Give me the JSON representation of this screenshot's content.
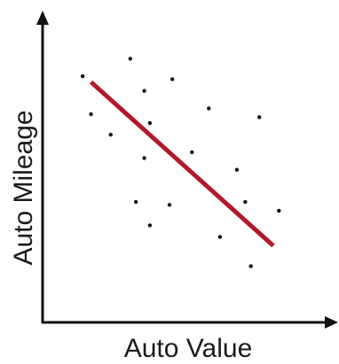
{
  "chart_data": {
    "type": "scatter",
    "xlabel": "Auto Value",
    "ylabel": "Auto Mileage",
    "title": "",
    "xlim": [
      0,
      100
    ],
    "ylim": [
      0,
      100
    ],
    "grid": false,
    "series": [
      {
        "values": [
          {
            "x": 13,
            "y": 83
          },
          {
            "x": 30,
            "y": 89
          },
          {
            "x": 35,
            "y": 78
          },
          {
            "x": 45,
            "y": 82
          },
          {
            "x": 16,
            "y": 70
          },
          {
            "x": 23,
            "y": 63
          },
          {
            "x": 37,
            "y": 67
          },
          {
            "x": 58,
            "y": 72
          },
          {
            "x": 76,
            "y": 69
          },
          {
            "x": 35,
            "y": 55
          },
          {
            "x": 52,
            "y": 57
          },
          {
            "x": 68,
            "y": 51
          },
          {
            "x": 32,
            "y": 40
          },
          {
            "x": 44,
            "y": 39
          },
          {
            "x": 37,
            "y": 32
          },
          {
            "x": 71,
            "y": 40
          },
          {
            "x": 83,
            "y": 37
          },
          {
            "x": 62,
            "y": 28
          },
          {
            "x": 73,
            "y": 18
          }
        ]
      }
    ],
    "trendline": {
      "x1": 16,
      "y1": 81,
      "x2": 81,
      "y2": 25,
      "color": "#b0182c"
    },
    "colors": {
      "points": "#111111",
      "axis": "#111111",
      "trendline": "#b0182c"
    }
  }
}
